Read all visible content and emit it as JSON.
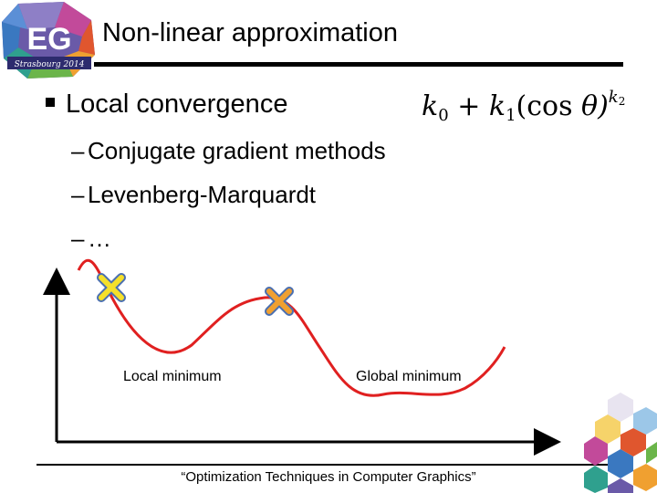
{
  "slide": {
    "title": "Non-linear approximation",
    "bullet": "Local convergence",
    "subitems": [
      "Conjugate gradient methods",
      "Levenberg-Marquardt",
      "…"
    ],
    "dash": "–",
    "footer": "“Optimization Techniques in Computer Graphics”"
  },
  "logo": {
    "letters": "EG",
    "caption": "Strasbourg 2014"
  },
  "formula": {
    "k0": "k",
    "k0_sub": "0",
    "plus": "+",
    "k1": "k",
    "k1_sub": "1",
    "cos": "(cos",
    "theta": "θ)",
    "exp": "k",
    "exp_sub": "2"
  },
  "diagram": {
    "local_label": "Local minimum",
    "global_label": "Global minimum",
    "curve_color": "#e02020",
    "marker_fill": "#f5e02a",
    "marker_outline": "#4a6fb0"
  }
}
